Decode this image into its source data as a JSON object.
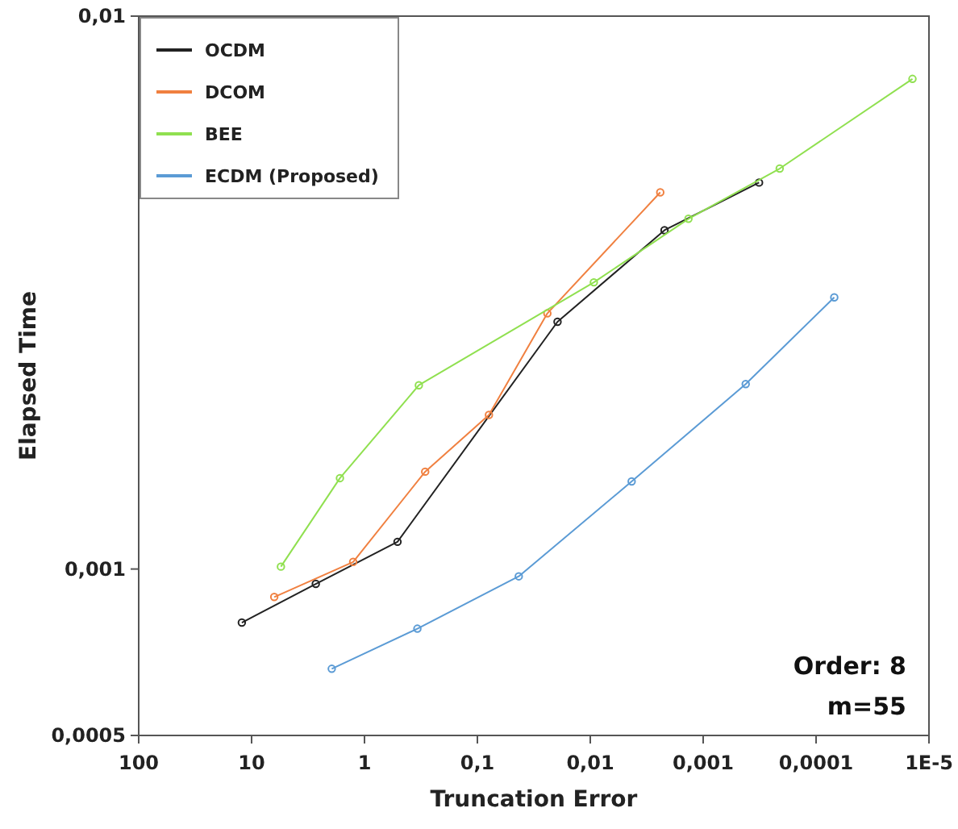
{
  "chart_data": {
    "type": "line",
    "xlabel": "Truncation Error",
    "ylabel": "Elapsed Time",
    "log": "xy",
    "legend": "top left",
    "marker": "circle",
    "line_style": "solid",
    "grid": false,
    "xlim": [
      100,
      1e-05
    ],
    "ylim": [
      0.0005,
      0.01
    ],
    "xticks": [
      100,
      10,
      1,
      {
        "value": 0.1,
        "label": "0,1"
      },
      {
        "value": 0.01,
        "label": "0,01"
      },
      {
        "value": 0.001,
        "label": "0,001"
      },
      {
        "value": 0.0001,
        "label": "0,0001"
      },
      {
        "value": 1e-05,
        "label": "1E-5"
      }
    ],
    "yticks": [
      {
        "value": 0.0005,
        "label": "0,0005"
      },
      {
        "value": 0.001,
        "label": "0,001"
      },
      {
        "value": 0.01,
        "label": "0,01"
      }
    ],
    "annotations": [
      "Order: 8",
      "m=55"
    ],
    "series": [
      {
        "name": "OCDM",
        "color": "#222222",
        "x": [
          12.2,
          2.7,
          0.51,
          0.0195,
          0.0022,
          0.00032
        ],
        "values": [
          0.0008,
          0.00094,
          0.00112,
          0.0028,
          0.0041,
          0.005
        ]
      },
      {
        "name": "DCOM",
        "color": "#f08040",
        "x": [
          6.3,
          1.26,
          0.29,
          0.079,
          0.024,
          0.0024
        ],
        "values": [
          0.00089,
          0.00103,
          0.0015,
          0.0019,
          0.0029,
          0.0048
        ]
      },
      {
        "name": "BEE",
        "color": "#90e050",
        "x": [
          5.5,
          1.65,
          0.33,
          0.0093,
          0.00135,
          0.00021,
          1.4e-05
        ],
        "values": [
          0.00101,
          0.00146,
          0.00215,
          0.0033,
          0.0043,
          0.0053,
          0.0077
        ]
      },
      {
        "name": "ECDM (Proposed)",
        "color": "#5b9bd5",
        "x": [
          1.95,
          0.34,
          0.043,
          0.0043,
          0.00042,
          6.9e-05
        ],
        "values": [
          0.00066,
          0.00078,
          0.00097,
          0.00144,
          0.00216,
          0.0031
        ]
      }
    ]
  }
}
